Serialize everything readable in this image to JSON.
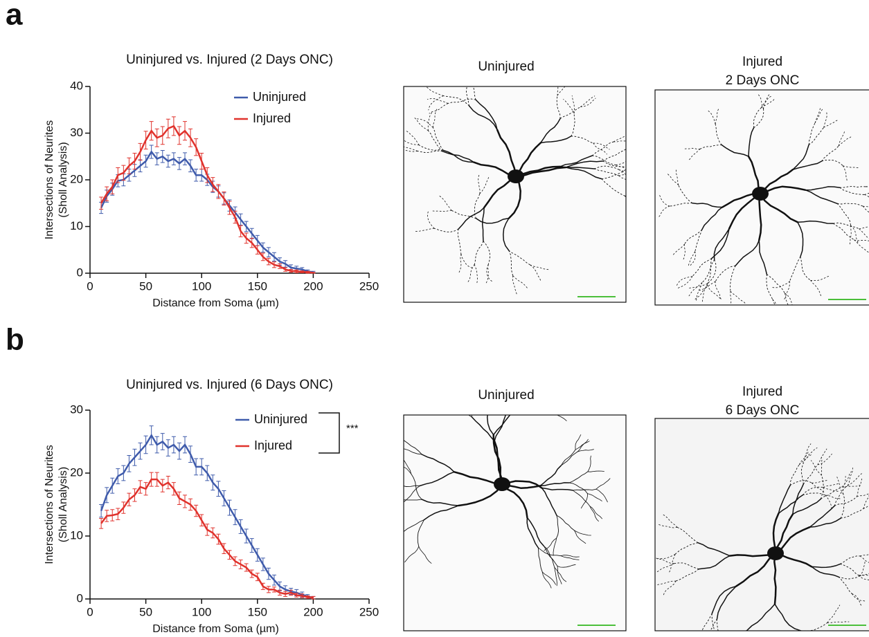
{
  "panel_labels": [
    "a",
    "b"
  ],
  "images": [
    {
      "title": [
        "Uninjured"
      ]
    },
    {
      "title": [
        "Injured",
        "2 Days ONC"
      ]
    },
    {
      "title": [
        "Uninjured"
      ]
    },
    {
      "title": [
        "Injured",
        "6 Days ONC"
      ]
    }
  ],
  "chart_data": [
    {
      "type": "line",
      "title": "Uninjured vs. Injured (2 Days ONC)",
      "x_label": "Distance from Soma (µm)",
      "y_label": [
        "Intersections of Neurites",
        "(Sholl  Analysis)"
      ],
      "x": [
        10,
        15,
        20,
        25,
        30,
        35,
        40,
        45,
        50,
        55,
        60,
        65,
        70,
        75,
        80,
        85,
        90,
        95,
        100,
        105,
        110,
        115,
        120,
        125,
        130,
        135,
        140,
        145,
        150,
        155,
        160,
        165,
        170,
        175,
        180,
        185,
        190,
        195,
        200
      ],
      "xlim": [
        0,
        250
      ],
      "xticks": [
        0,
        50,
        100,
        150,
        200,
        250
      ],
      "ylim": [
        0,
        40
      ],
      "yticks": [
        0,
        10,
        20,
        30,
        40
      ],
      "series": [
        {
          "name": "Uninjured",
          "color": "#3f5bab",
          "values": [
            14,
            16.5,
            18,
            19.8,
            20,
            21,
            22,
            23,
            24,
            26,
            24.5,
            25,
            24,
            24.5,
            23.5,
            24.5,
            23,
            21,
            21,
            20,
            18.5,
            17.5,
            16,
            14.5,
            13,
            11.5,
            10,
            8.5,
            7,
            5.5,
            4.5,
            3.5,
            2.5,
            2,
            1.2,
            1,
            0.8,
            0.4,
            0.2
          ],
          "errors": [
            1.2,
            1.3,
            1.3,
            1.3,
            1.3,
            1.3,
            1.3,
            1.3,
            1.3,
            1.4,
            1.3,
            1.3,
            1.3,
            1.3,
            1.3,
            1.3,
            1.3,
            1.3,
            1.3,
            1.2,
            1.2,
            1.2,
            1.2,
            1.2,
            1.2,
            1.2,
            1.1,
            1.1,
            1.1,
            1,
            1,
            0.9,
            0.8,
            0.7,
            0.6,
            0.5,
            0.4,
            0.3,
            0.2
          ]
        },
        {
          "name": "Injured",
          "color": "#e0322c",
          "values": [
            15,
            17,
            18.5,
            21,
            21.5,
            23,
            24,
            26,
            28.5,
            30.5,
            29,
            29.5,
            31,
            31.5,
            29.5,
            30.5,
            29,
            27,
            24,
            21,
            19,
            17.5,
            16,
            14,
            12,
            9,
            7.5,
            6.5,
            5,
            3.5,
            2.5,
            1.8,
            1.5,
            0.8,
            0.5,
            0.4,
            0.3,
            0.2,
            0.1
          ],
          "errors": [
            1.3,
            1.5,
            1.5,
            1.6,
            1.6,
            1.7,
            1.7,
            1.8,
            1.9,
            2,
            1.9,
            1.9,
            2,
            2,
            1.9,
            2,
            1.9,
            1.8,
            1.7,
            1.6,
            1.5,
            1.5,
            1.4,
            1.4,
            1.3,
            1.2,
            1.1,
            1,
            0.9,
            0.8,
            0.7,
            0.6,
            0.5,
            0.4,
            0.3,
            0.3,
            0.2,
            0.2,
            0.1
          ]
        }
      ]
    },
    {
      "type": "line",
      "title": "Uninjured vs. Injured (6 Days ONC)",
      "x_label": "Distance from Soma (µm)",
      "y_label": [
        "Intersections of Neurites",
        "(Sholl  Analysis)"
      ],
      "annotation": "***",
      "x": [
        10,
        15,
        20,
        25,
        30,
        35,
        40,
        45,
        50,
        55,
        60,
        65,
        70,
        75,
        80,
        85,
        90,
        95,
        100,
        105,
        110,
        115,
        120,
        125,
        130,
        135,
        140,
        145,
        150,
        155,
        160,
        165,
        170,
        175,
        180,
        185,
        190,
        195,
        200
      ],
      "xlim": [
        0,
        250
      ],
      "xticks": [
        0,
        50,
        100,
        150,
        200,
        250
      ],
      "ylim": [
        0,
        30
      ],
      "yticks": [
        0,
        10,
        20,
        30
      ],
      "series": [
        {
          "name": "Uninjured",
          "color": "#3f5bab",
          "values": [
            14,
            16.5,
            18,
            19.5,
            20,
            21.5,
            22.5,
            23.5,
            24.5,
            26,
            24.5,
            25,
            24,
            24.5,
            23.5,
            24.5,
            23,
            21,
            21,
            20,
            18.5,
            17.5,
            16,
            14.5,
            13,
            11.5,
            10,
            8.5,
            7,
            5.5,
            4,
            3,
            2,
            1.5,
            1.2,
            1,
            0.7,
            0.4,
            0.2
          ],
          "errors": [
            1,
            1.2,
            1.2,
            1.2,
            1.2,
            1.3,
            1.3,
            1.3,
            1.4,
            1.5,
            1.3,
            1.3,
            1.3,
            1.3,
            1.3,
            1.3,
            1.3,
            1.3,
            1.3,
            1.2,
            1.2,
            1.2,
            1.2,
            1.2,
            1.2,
            1.1,
            1.1,
            1.1,
            1,
            1,
            0.9,
            0.8,
            0.7,
            0.6,
            0.5,
            0.5,
            0.4,
            0.3,
            0.2
          ]
        },
        {
          "name": "Injured",
          "color": "#e0322c",
          "values": [
            12,
            13.2,
            13.3,
            13.5,
            14.5,
            15.8,
            16.5,
            17.8,
            17.5,
            19,
            19,
            18,
            18.5,
            17.5,
            16,
            15.5,
            15,
            14,
            12.5,
            11,
            10.5,
            9.5,
            8,
            7,
            6,
            5.5,
            5,
            4,
            3.5,
            2,
            1.5,
            1.5,
            1,
            0.8,
            1,
            0.6,
            0.5,
            0.3,
            0.2
          ],
          "errors": [
            0.8,
            0.9,
            0.9,
            0.9,
            0.9,
            1,
            1,
            1,
            1,
            1.1,
            1.1,
            1,
            1,
            1,
            1,
            1,
            0.9,
            0.9,
            0.9,
            0.9,
            0.8,
            0.8,
            0.8,
            0.7,
            0.7,
            0.7,
            0.6,
            0.6,
            0.6,
            0.5,
            0.5,
            0.4,
            0.4,
            0.4,
            0.4,
            0.3,
            0.3,
            0.2,
            0.2
          ]
        }
      ]
    }
  ]
}
